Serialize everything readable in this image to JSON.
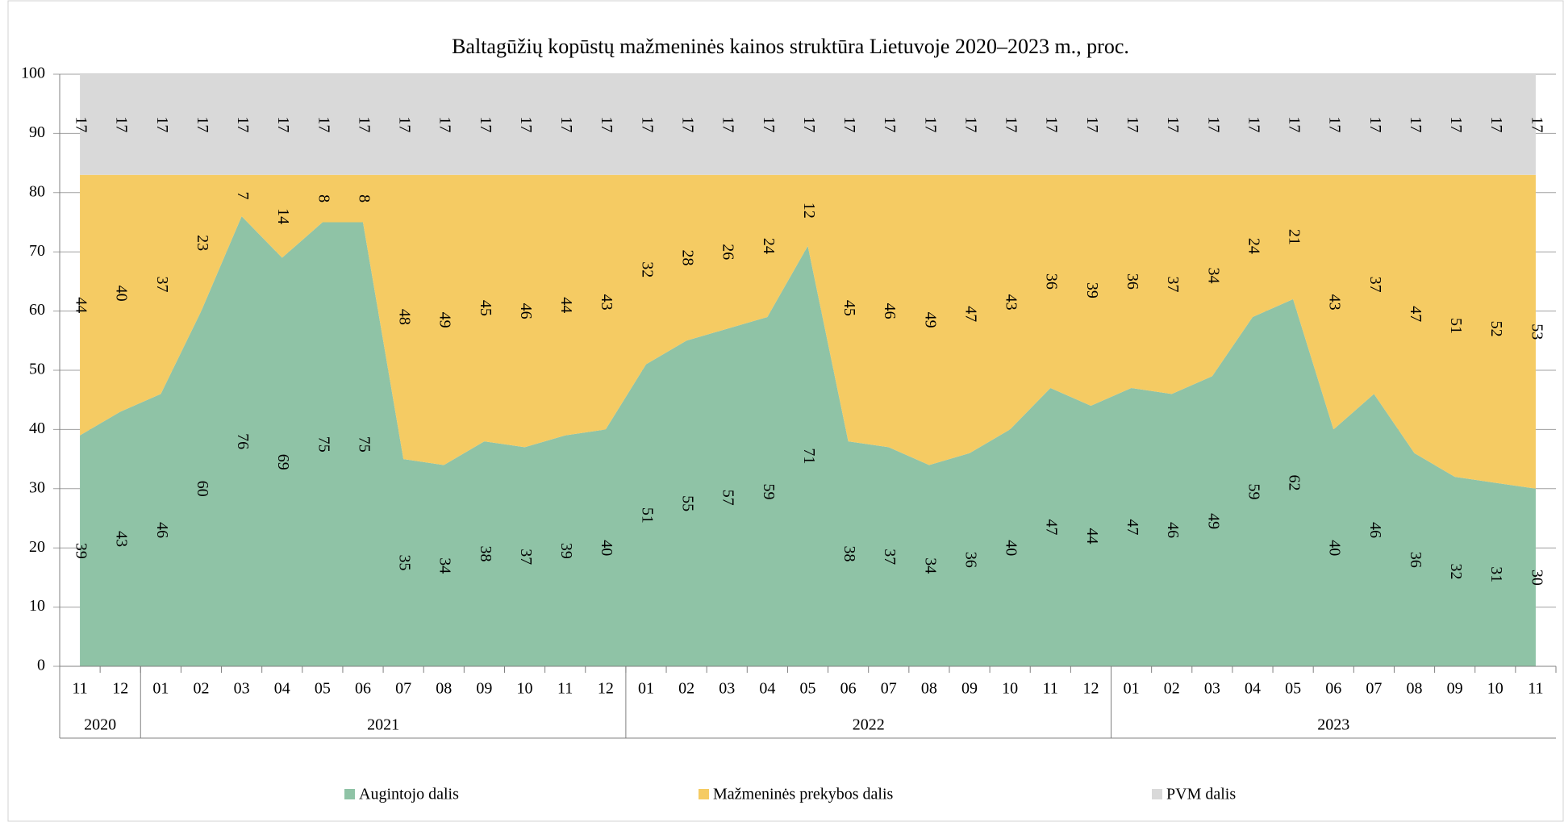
{
  "chart_data": {
    "type": "stacked_area",
    "title": "Baltagūžių kopūstų mažmeninės kainos struktūra Lietuvoje 2020–2023 m., proc.",
    "categories": [
      "11",
      "12",
      "01",
      "02",
      "03",
      "04",
      "05",
      "06",
      "07",
      "08",
      "09",
      "10",
      "11",
      "12",
      "01",
      "02",
      "03",
      "04",
      "05",
      "06",
      "07",
      "08",
      "09",
      "10",
      "11",
      "12",
      "01",
      "02",
      "03",
      "04",
      "05",
      "06",
      "07",
      "08",
      "09",
      "10",
      "11"
    ],
    "year_groups": [
      "2020",
      "2021",
      "2022",
      "2023"
    ],
    "series": [
      {
        "name": "Augintojo dalis",
        "color": "#8fc3a6",
        "values": [
          39,
          43,
          46,
          60,
          76,
          69,
          75,
          75,
          35,
          34,
          38,
          37,
          39,
          40,
          51,
          55,
          57,
          59,
          71,
          38,
          37,
          34,
          36,
          40,
          47,
          44,
          47,
          46,
          49,
          59,
          62,
          40,
          46,
          36,
          32,
          31,
          30
        ]
      },
      {
        "name": "Mažmeninės prekybos dalis",
        "color": "#f5cb63",
        "values": [
          44,
          40,
          37,
          23,
          7,
          14,
          8,
          8,
          48,
          49,
          45,
          46,
          44,
          43,
          32,
          28,
          26,
          24,
          12,
          45,
          46,
          49,
          47,
          43,
          36,
          39,
          36,
          37,
          34,
          24,
          21,
          43,
          37,
          47,
          51,
          52,
          53
        ]
      },
      {
        "name": "PVM dalis",
        "color": "#d9d9d9",
        "values": [
          17,
          17,
          17,
          17,
          17,
          17,
          17,
          17,
          17,
          17,
          17,
          17,
          17,
          17,
          17,
          17,
          17,
          17,
          17,
          17,
          17,
          17,
          17,
          17,
          17,
          17,
          17,
          17,
          17,
          17,
          17,
          17,
          17,
          17,
          17,
          17,
          17
        ]
      }
    ],
    "ylim": [
      0,
      100
    ],
    "yticks": [
      0,
      10,
      20,
      30,
      40,
      50,
      60,
      70,
      80,
      90,
      100
    ],
    "grid": true,
    "legend": "bottom"
  }
}
